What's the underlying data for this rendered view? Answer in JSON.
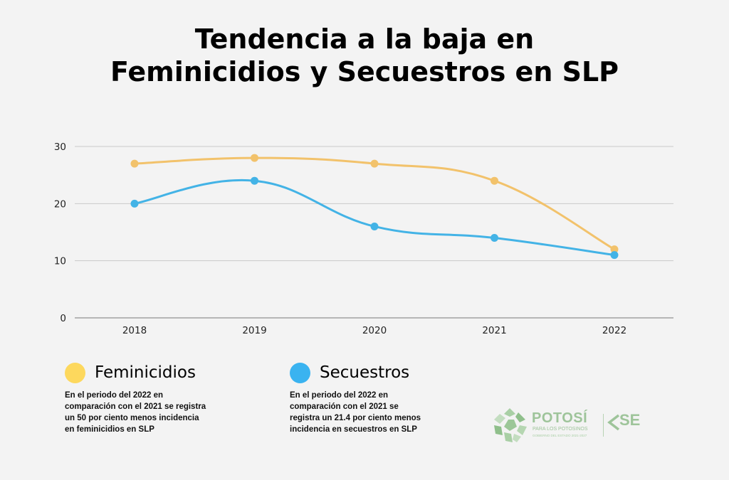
{
  "title": {
    "line1": "Tendencia a la baja en",
    "line2": "Feminicidios y Secuestros en SLP"
  },
  "chart_data": {
    "type": "line",
    "categories": [
      "2018",
      "2019",
      "2020",
      "2021",
      "2022"
    ],
    "series": [
      {
        "name": "Feminicidios",
        "values": [
          27,
          28,
          27,
          24,
          12
        ],
        "color": "#f2c26b"
      },
      {
        "name": "Secuestros",
        "values": [
          20,
          24,
          16,
          14,
          11
        ],
        "color": "#43b3e6"
      }
    ],
    "yticks": [
      "0",
      "10",
      "20",
      "30"
    ],
    "ylim": [
      0,
      30
    ],
    "grid": true,
    "smooth": true,
    "legend_position": "bottom-left"
  },
  "legend": [
    {
      "name": "Feminicidios",
      "color": "#fdd85d",
      "note": "En el periodo del 2022 en comparación con el 2021 se registra un 50  por ciento menos incidencia en feminicidios en SLP"
    },
    {
      "name": "Secuestros",
      "color": "#3ab3f0",
      "note": "En el periodo del 2022 en comparación con el 2021 se registra un 21.4 por ciento menos incidencia en secuestros en SLP"
    }
  ],
  "logos": {
    "potosi": "POTOSÍ",
    "potosi_sub": "PARA LOS POTOSINOS",
    "potosi_sub2": "GOBIERNO DEL ESTADO 2021-2027",
    "se": "SE"
  }
}
